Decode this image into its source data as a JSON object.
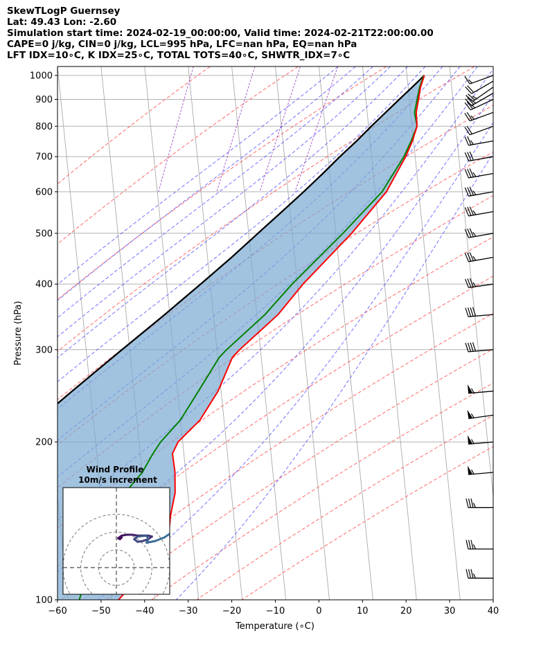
{
  "header": {
    "lines": [
      "SkewTLogP Guernsey",
      "Lat: 49.43   Lon: -2.60",
      "Simulation start time: 2024-02-19_00:00:00, Valid time: 2024-02-21T22:00:00.00",
      "CAPE=0 j/kg, CIN=0 j/kg, LCL=995 hPa, LFC=nan hPa, EQ=nan hPa",
      "LFT IDX=10∘C, K IDX=25∘C, TOTAL TOTS=40∘C, SHWTR_IDX=7∘C"
    ]
  },
  "chart_data": {
    "type": "skewt",
    "xlabel": "Temperature (∘C)",
    "ylabel": "Pressure (hPa)",
    "xlim": [
      -60,
      40
    ],
    "ylim": [
      1040,
      100
    ],
    "x_ticks": [
      "−60",
      "−50",
      "−40",
      "−30",
      "−20",
      "−10",
      "0",
      "10",
      "20",
      "30",
      "40"
    ],
    "x_tick_values": [
      -60,
      -50,
      -40,
      -30,
      -20,
      -10,
      0,
      10,
      20,
      30,
      40
    ],
    "y_ticks": [
      "100",
      "200",
      "300",
      "400",
      "500",
      "600",
      "700",
      "800",
      "900",
      "1000"
    ],
    "y_tick_values": [
      100,
      200,
      300,
      400,
      500,
      600,
      700,
      800,
      900,
      1000
    ],
    "grid": true,
    "colors": {
      "temperature": "#ff0000",
      "dewpoint": "#008000",
      "parcel": "#000000",
      "cape_fill": "#7aaad2",
      "dry_adiabat": "#ff4d4d",
      "moist_adiabat": "#4d4dff",
      "mixing_ratio": "#9a3dbf",
      "isotherm": "#999999"
    },
    "temperature": [
      {
        "p": 1000,
        "t": 12.0
      },
      {
        "p": 950,
        "t": 11.4
      },
      {
        "p": 850,
        "t": 11.0
      },
      {
        "p": 800,
        "t": 11.5
      },
      {
        "p": 750,
        "t": 10.8
      },
      {
        "p": 700,
        "t": 9.6
      },
      {
        "p": 600,
        "t": 6.0
      },
      {
        "p": 500,
        "t": -1.0
      },
      {
        "p": 400,
        "t": -11.0
      },
      {
        "p": 350,
        "t": -16.0
      },
      {
        "p": 300,
        "t": -24.0
      },
      {
        "p": 290,
        "t": -25.5
      },
      {
        "p": 250,
        "t": -28.0
      },
      {
        "p": 220,
        "t": -31.5
      },
      {
        "p": 200,
        "t": -36.0
      },
      {
        "p": 190,
        "t": -37.0
      },
      {
        "p": 175,
        "t": -36.0
      },
      {
        "p": 160,
        "t": -35.5
      },
      {
        "p": 145,
        "t": -36.0
      },
      {
        "p": 130,
        "t": -36.0
      },
      {
        "p": 120,
        "t": -38.0
      },
      {
        "p": 110,
        "t": -42.0
      },
      {
        "p": 100,
        "t": -46.0
      }
    ],
    "dewpoint": [
      {
        "p": 1000,
        "t": 11.9
      },
      {
        "p": 950,
        "t": 11.2
      },
      {
        "p": 850,
        "t": 10.6
      },
      {
        "p": 800,
        "t": 11.5
      },
      {
        "p": 750,
        "t": 10.5
      },
      {
        "p": 700,
        "t": 9.2
      },
      {
        "p": 600,
        "t": 5.0
      },
      {
        "p": 500,
        "t": -3.0
      },
      {
        "p": 400,
        "t": -13.5
      },
      {
        "p": 350,
        "t": -19.0
      },
      {
        "p": 300,
        "t": -27.0
      },
      {
        "p": 290,
        "t": -28.5
      },
      {
        "p": 250,
        "t": -32.5
      },
      {
        "p": 220,
        "t": -36.0
      },
      {
        "p": 200,
        "t": -40.0
      },
      {
        "p": 190,
        "t": -41.5
      },
      {
        "p": 175,
        "t": -43.5
      },
      {
        "p": 160,
        "t": -47.0
      },
      {
        "p": 145,
        "t": -51.0
      },
      {
        "p": 130,
        "t": -54.0
      },
      {
        "p": 120,
        "t": -54.5
      },
      {
        "p": 110,
        "t": -54.0
      },
      {
        "p": 100,
        "t": -55.0
      }
    ],
    "parcel": [
      {
        "p": 1000,
        "t": 12.0
      },
      {
        "p": 950,
        "t": 9.5
      },
      {
        "p": 900,
        "t": 6.8
      },
      {
        "p": 850,
        "t": 4.0
      },
      {
        "p": 800,
        "t": 1.0
      },
      {
        "p": 750,
        "t": -2.0
      },
      {
        "p": 700,
        "t": -5.5
      },
      {
        "p": 650,
        "t": -9.0
      },
      {
        "p": 600,
        "t": -13.0
      },
      {
        "p": 550,
        "t": -17.5
      },
      {
        "p": 500,
        "t": -22.5
      },
      {
        "p": 450,
        "t": -28.0
      },
      {
        "p": 400,
        "t": -34.5
      },
      {
        "p": 350,
        "t": -42.0
      },
      {
        "p": 300,
        "t": -51.0
      },
      {
        "p": 250,
        "t": -61.5
      },
      {
        "p": 200,
        "t": -74.0
      },
      {
        "p": 175,
        "t": -81.0
      },
      {
        "p": 150,
        "t": -89.0
      },
      {
        "p": 125,
        "t": -98.0
      },
      {
        "p": 100,
        "t": -108.0
      }
    ],
    "wind_barbs": [
      {
        "p": 1000,
        "speed_kt": 15,
        "dir_deg": 250
      },
      {
        "p": 975,
        "speed_kt": 20,
        "dir_deg": 240
      },
      {
        "p": 950,
        "speed_kt": 25,
        "dir_deg": 235
      },
      {
        "p": 925,
        "speed_kt": 25,
        "dir_deg": 240
      },
      {
        "p": 900,
        "speed_kt": 25,
        "dir_deg": 245
      },
      {
        "p": 850,
        "speed_kt": 25,
        "dir_deg": 250
      },
      {
        "p": 800,
        "speed_kt": 20,
        "dir_deg": 250
      },
      {
        "p": 750,
        "speed_kt": 25,
        "dir_deg": 260
      },
      {
        "p": 700,
        "speed_kt": 30,
        "dir_deg": 260
      },
      {
        "p": 650,
        "speed_kt": 35,
        "dir_deg": 260
      },
      {
        "p": 600,
        "speed_kt": 35,
        "dir_deg": 260
      },
      {
        "p": 550,
        "speed_kt": 35,
        "dir_deg": 260
      },
      {
        "p": 500,
        "speed_kt": 35,
        "dir_deg": 260
      },
      {
        "p": 450,
        "speed_kt": 35,
        "dir_deg": 260
      },
      {
        "p": 400,
        "speed_kt": 35,
        "dir_deg": 262
      },
      {
        "p": 350,
        "speed_kt": 40,
        "dir_deg": 265
      },
      {
        "p": 300,
        "speed_kt": 40,
        "dir_deg": 265
      },
      {
        "p": 250,
        "speed_kt": 55,
        "dir_deg": 265
      },
      {
        "p": 225,
        "speed_kt": 55,
        "dir_deg": 262
      },
      {
        "p": 200,
        "speed_kt": 55,
        "dir_deg": 265
      },
      {
        "p": 175,
        "speed_kt": 55,
        "dir_deg": 265
      },
      {
        "p": 150,
        "speed_kt": 35,
        "dir_deg": 270
      },
      {
        "p": 125,
        "speed_kt": 35,
        "dir_deg": 270
      },
      {
        "p": 110,
        "speed_kt": 35,
        "dir_deg": 270
      }
    ],
    "hodograph": {
      "title": "Wind Profile",
      "subtitle": "10m/s increment",
      "ring_step_ms": 10,
      "rings": 3,
      "xlim": [
        -30,
        30
      ],
      "ylim": [
        -10,
        30
      ],
      "points": [
        {
          "u": 3,
          "v": 17
        },
        {
          "u": 2,
          "v": 16
        },
        {
          "u": 1,
          "v": 16.5
        },
        {
          "u": 3,
          "v": 18
        },
        {
          "u": 6,
          "v": 18.5
        },
        {
          "u": 9,
          "v": 18.5
        },
        {
          "u": 12,
          "v": 18
        },
        {
          "u": 18,
          "v": 18
        },
        {
          "u": 20,
          "v": 17.5
        },
        {
          "u": 18,
          "v": 16
        },
        {
          "u": 15,
          "v": 15
        },
        {
          "u": 12,
          "v": 14.5
        },
        {
          "u": 10,
          "v": 16
        },
        {
          "u": 12,
          "v": 17.5
        },
        {
          "u": 17,
          "v": 18
        },
        {
          "u": 18,
          "v": 16
        },
        {
          "u": 17,
          "v": 14
        },
        {
          "u": 22,
          "v": 15
        },
        {
          "u": 27,
          "v": 17
        },
        {
          "u": 30,
          "v": 19
        },
        {
          "u": 33,
          "v": 20.5
        }
      ]
    }
  }
}
